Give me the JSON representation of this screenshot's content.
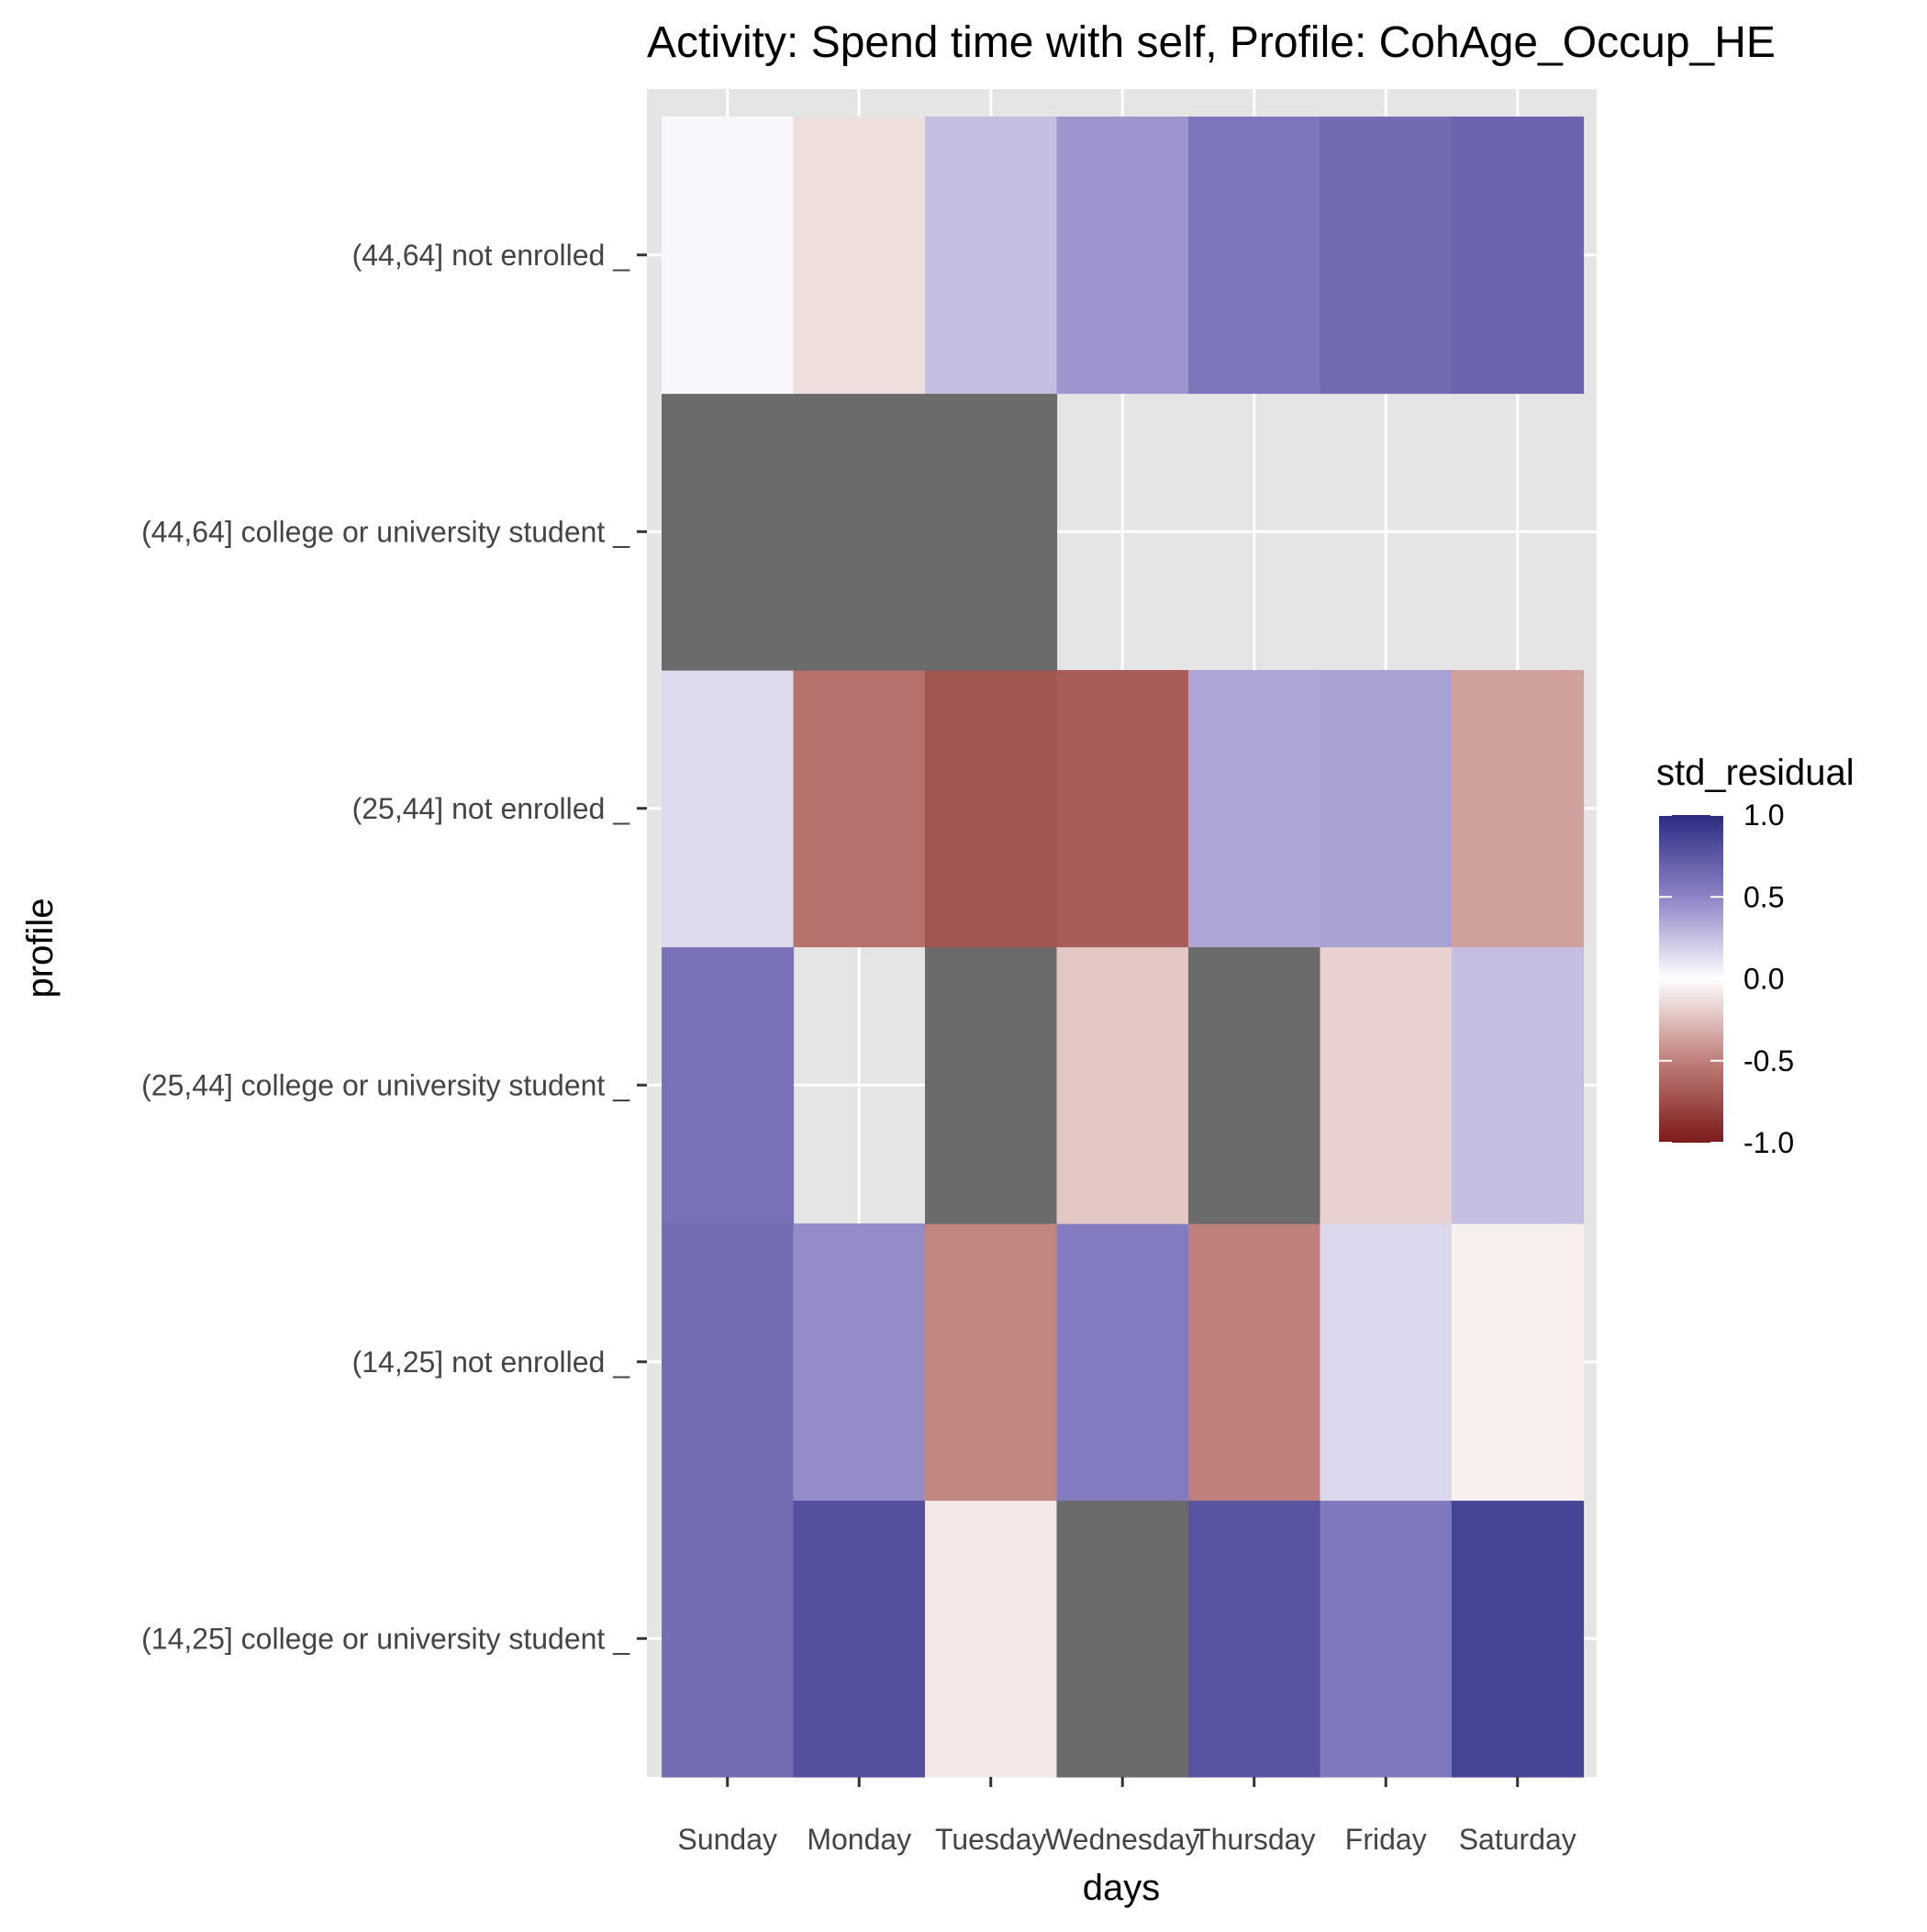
{
  "chart_data": {
    "type": "heatmap",
    "title": "Activity: Spend time with self, Profile: CohAge_Occup_HE",
    "xlabel": "days",
    "ylabel": "profile",
    "x": [
      "Sunday",
      "Monday",
      "Tuesday",
      "Wednesday",
      "Thursday",
      "Friday",
      "Saturday"
    ],
    "y": [
      "(14,25] college or university student _",
      "(14,25] not enrolled _",
      "(25,44] college or university student _",
      "(25,44] not enrolled _",
      "(44,64] college or university student _",
      "(44,64] not enrolled _"
    ],
    "values": [
      [
        0.63,
        0.79,
        -0.09,
        "NA",
        0.77,
        0.57,
        0.86
      ],
      [
        0.63,
        0.47,
        -0.47,
        0.55,
        -0.5,
        0.16,
        -0.06
      ],
      [
        0.6,
        null,
        "NA",
        -0.22,
        "NA",
        -0.18,
        0.26
      ],
      [
        0.15,
        -0.57,
        -0.71,
        -0.67,
        0.36,
        0.38,
        -0.37
      ],
      [
        "NA",
        "NA",
        "NA",
        null,
        null,
        null,
        null
      ],
      [
        0.03,
        -0.13,
        0.26,
        0.43,
        0.58,
        0.64,
        0.68
      ]
    ],
    "value_notes": "null = no tile (background shown); \"NA\" = missing value drawn in grey",
    "colors": {
      "high": "#2b2b82",
      "mid": "#ffffff",
      "low": "#7d1a1a",
      "na": "#6b6b6b",
      "panel": "#e5e5e5",
      "grid": "#ffffff"
    },
    "legend": {
      "title": "std_residual",
      "ticks": [
        "1.0",
        "0.5",
        "0.0",
        "-0.5",
        "-1.0"
      ],
      "limits": [
        -1,
        1
      ],
      "position": "right"
    }
  }
}
